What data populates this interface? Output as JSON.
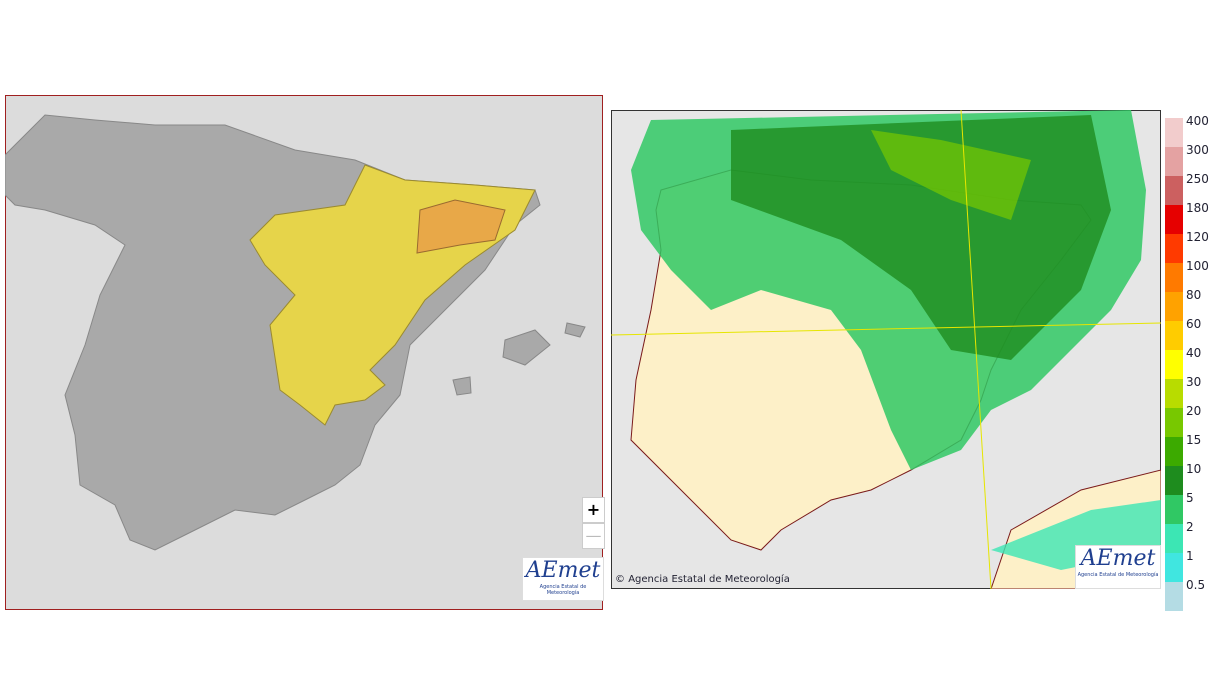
{
  "left_map": {
    "zoom_in": "+",
    "zoom_out": "—",
    "logo": {
      "name": "AEmet",
      "subtitle": "Agencia Estatal de Meteorología"
    }
  },
  "right_map": {
    "copyright": "Agencia Estatal de Meteorología",
    "logo": {
      "name": "AEmet",
      "subtitle": "Agencia Estatal de Meteorología"
    },
    "legend": [
      {
        "label": "400",
        "color": "#f2cccc"
      },
      {
        "label": "300",
        "color": "#e4a2a2"
      },
      {
        "label": "250",
        "color": "#cc6060"
      },
      {
        "label": "180",
        "color": "#e60000"
      },
      {
        "label": "120",
        "color": "#ff3a00"
      },
      {
        "label": "100",
        "color": "#ff7a00"
      },
      {
        "label": "80",
        "color": "#ffa200"
      },
      {
        "label": "60",
        "color": "#ffcc00"
      },
      {
        "label": "40",
        "color": "#ffff00"
      },
      {
        "label": "30",
        "color": "#b8dc00"
      },
      {
        "label": "20",
        "color": "#78c800"
      },
      {
        "label": "15",
        "color": "#3caa00"
      },
      {
        "label": "10",
        "color": "#1e8c1e"
      },
      {
        "label": "5",
        "color": "#30c864"
      },
      {
        "label": "2",
        "color": "#3ce6b4"
      },
      {
        "label": "1",
        "color": "#40e6e0"
      },
      {
        "label": "0.5",
        "color": "#b4dce4"
      }
    ]
  }
}
